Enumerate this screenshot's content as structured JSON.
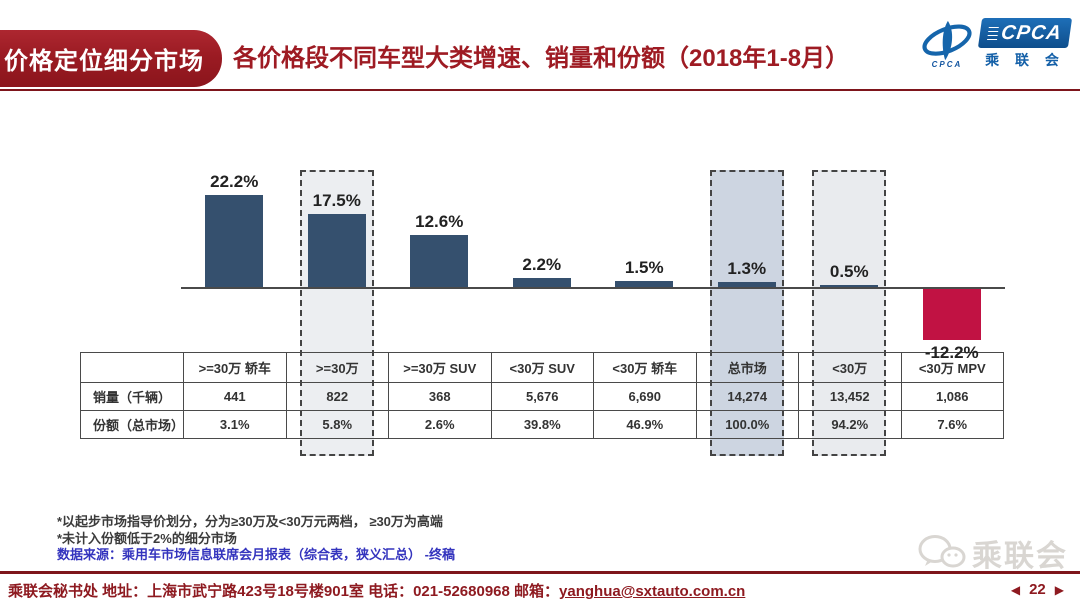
{
  "header": {
    "banner_label": "价格定位细分市场",
    "title": "各价格段不同车型大类增速、销量和份额（2018年1-8月）",
    "logo": {
      "emblem_caption": "CPCA",
      "badge_text": "CPCA",
      "badge_subtext": "乘 联 会"
    }
  },
  "chart_data": {
    "type": "bar",
    "title": "各价格段不同车型大类增速、销量和份额（2018年1-8月）",
    "categories": [
      ">=30万 轿车",
      ">=30万",
      ">=30万 SUV",
      "<30万 SUV",
      "<30万 轿车",
      "总市场",
      "<30万",
      "<30万 MPV"
    ],
    "series": [
      {
        "name": "增速",
        "unit": "%",
        "values": [
          22.2,
          17.5,
          12.6,
          2.2,
          1.5,
          1.3,
          0.5,
          -12.2
        ]
      }
    ],
    "bar_labels": [
      "22.2%",
      "17.5%",
      "12.6%",
      "2.2%",
      "1.5%",
      "1.3%",
      "0.5%",
      "-12.2%"
    ],
    "highlighted_columns": [
      {
        "index": 1,
        "category": ">=30万",
        "fill": "#ECEEF1"
      },
      {
        "index": 5,
        "category": "总市场",
        "fill": "#CDD5E1"
      },
      {
        "index": 6,
        "category": "<30万",
        "fill": "#E9EBEE"
      }
    ],
    "ylim": [
      -15,
      25
    ],
    "baseline": 0,
    "grid": false,
    "legend": false,
    "colors": {
      "positive_bar": "#35506E",
      "negative_bar": "#C11243",
      "label_text": "#222222"
    }
  },
  "table": {
    "corner_label": "",
    "columns": [
      ">=30万 轿车",
      ">=30万",
      ">=30万 SUV",
      "<30万 SUV",
      "<30万 轿车",
      "总市场",
      "<30万",
      "<30万 MPV"
    ],
    "rows": [
      {
        "label": "销量（千辆）",
        "values": [
          "441",
          "822",
          "368",
          "5,676",
          "6,690",
          "14,274",
          "13,452",
          "1,086"
        ]
      },
      {
        "label": "份额（总市场）",
        "values": [
          "3.1%",
          "5.8%",
          "2.6%",
          "39.8%",
          "46.9%",
          "100.0%",
          "94.2%",
          "7.6%"
        ]
      }
    ]
  },
  "footnotes": {
    "line1": "*以起步市场指导价划分，分为≥30万及<30万元两档， ≥30万为高端",
    "line2": "*未计入份额低于2%的细分市场",
    "source": "数据来源：乘用车市场信息联席会月报表（综合表，狭义汇总） -终稿"
  },
  "footer": {
    "secretariat": "乘联会秘书处  ",
    "contact": "地址：上海市武宁路423号18号楼901室 电话：021-52680968  邮箱：",
    "email": "yanghua@sxtauto.com.cn",
    "page_number": "22",
    "nav_prev_icon": "◀",
    "nav_next_icon": "▶",
    "watermark_text": "乘联会"
  }
}
